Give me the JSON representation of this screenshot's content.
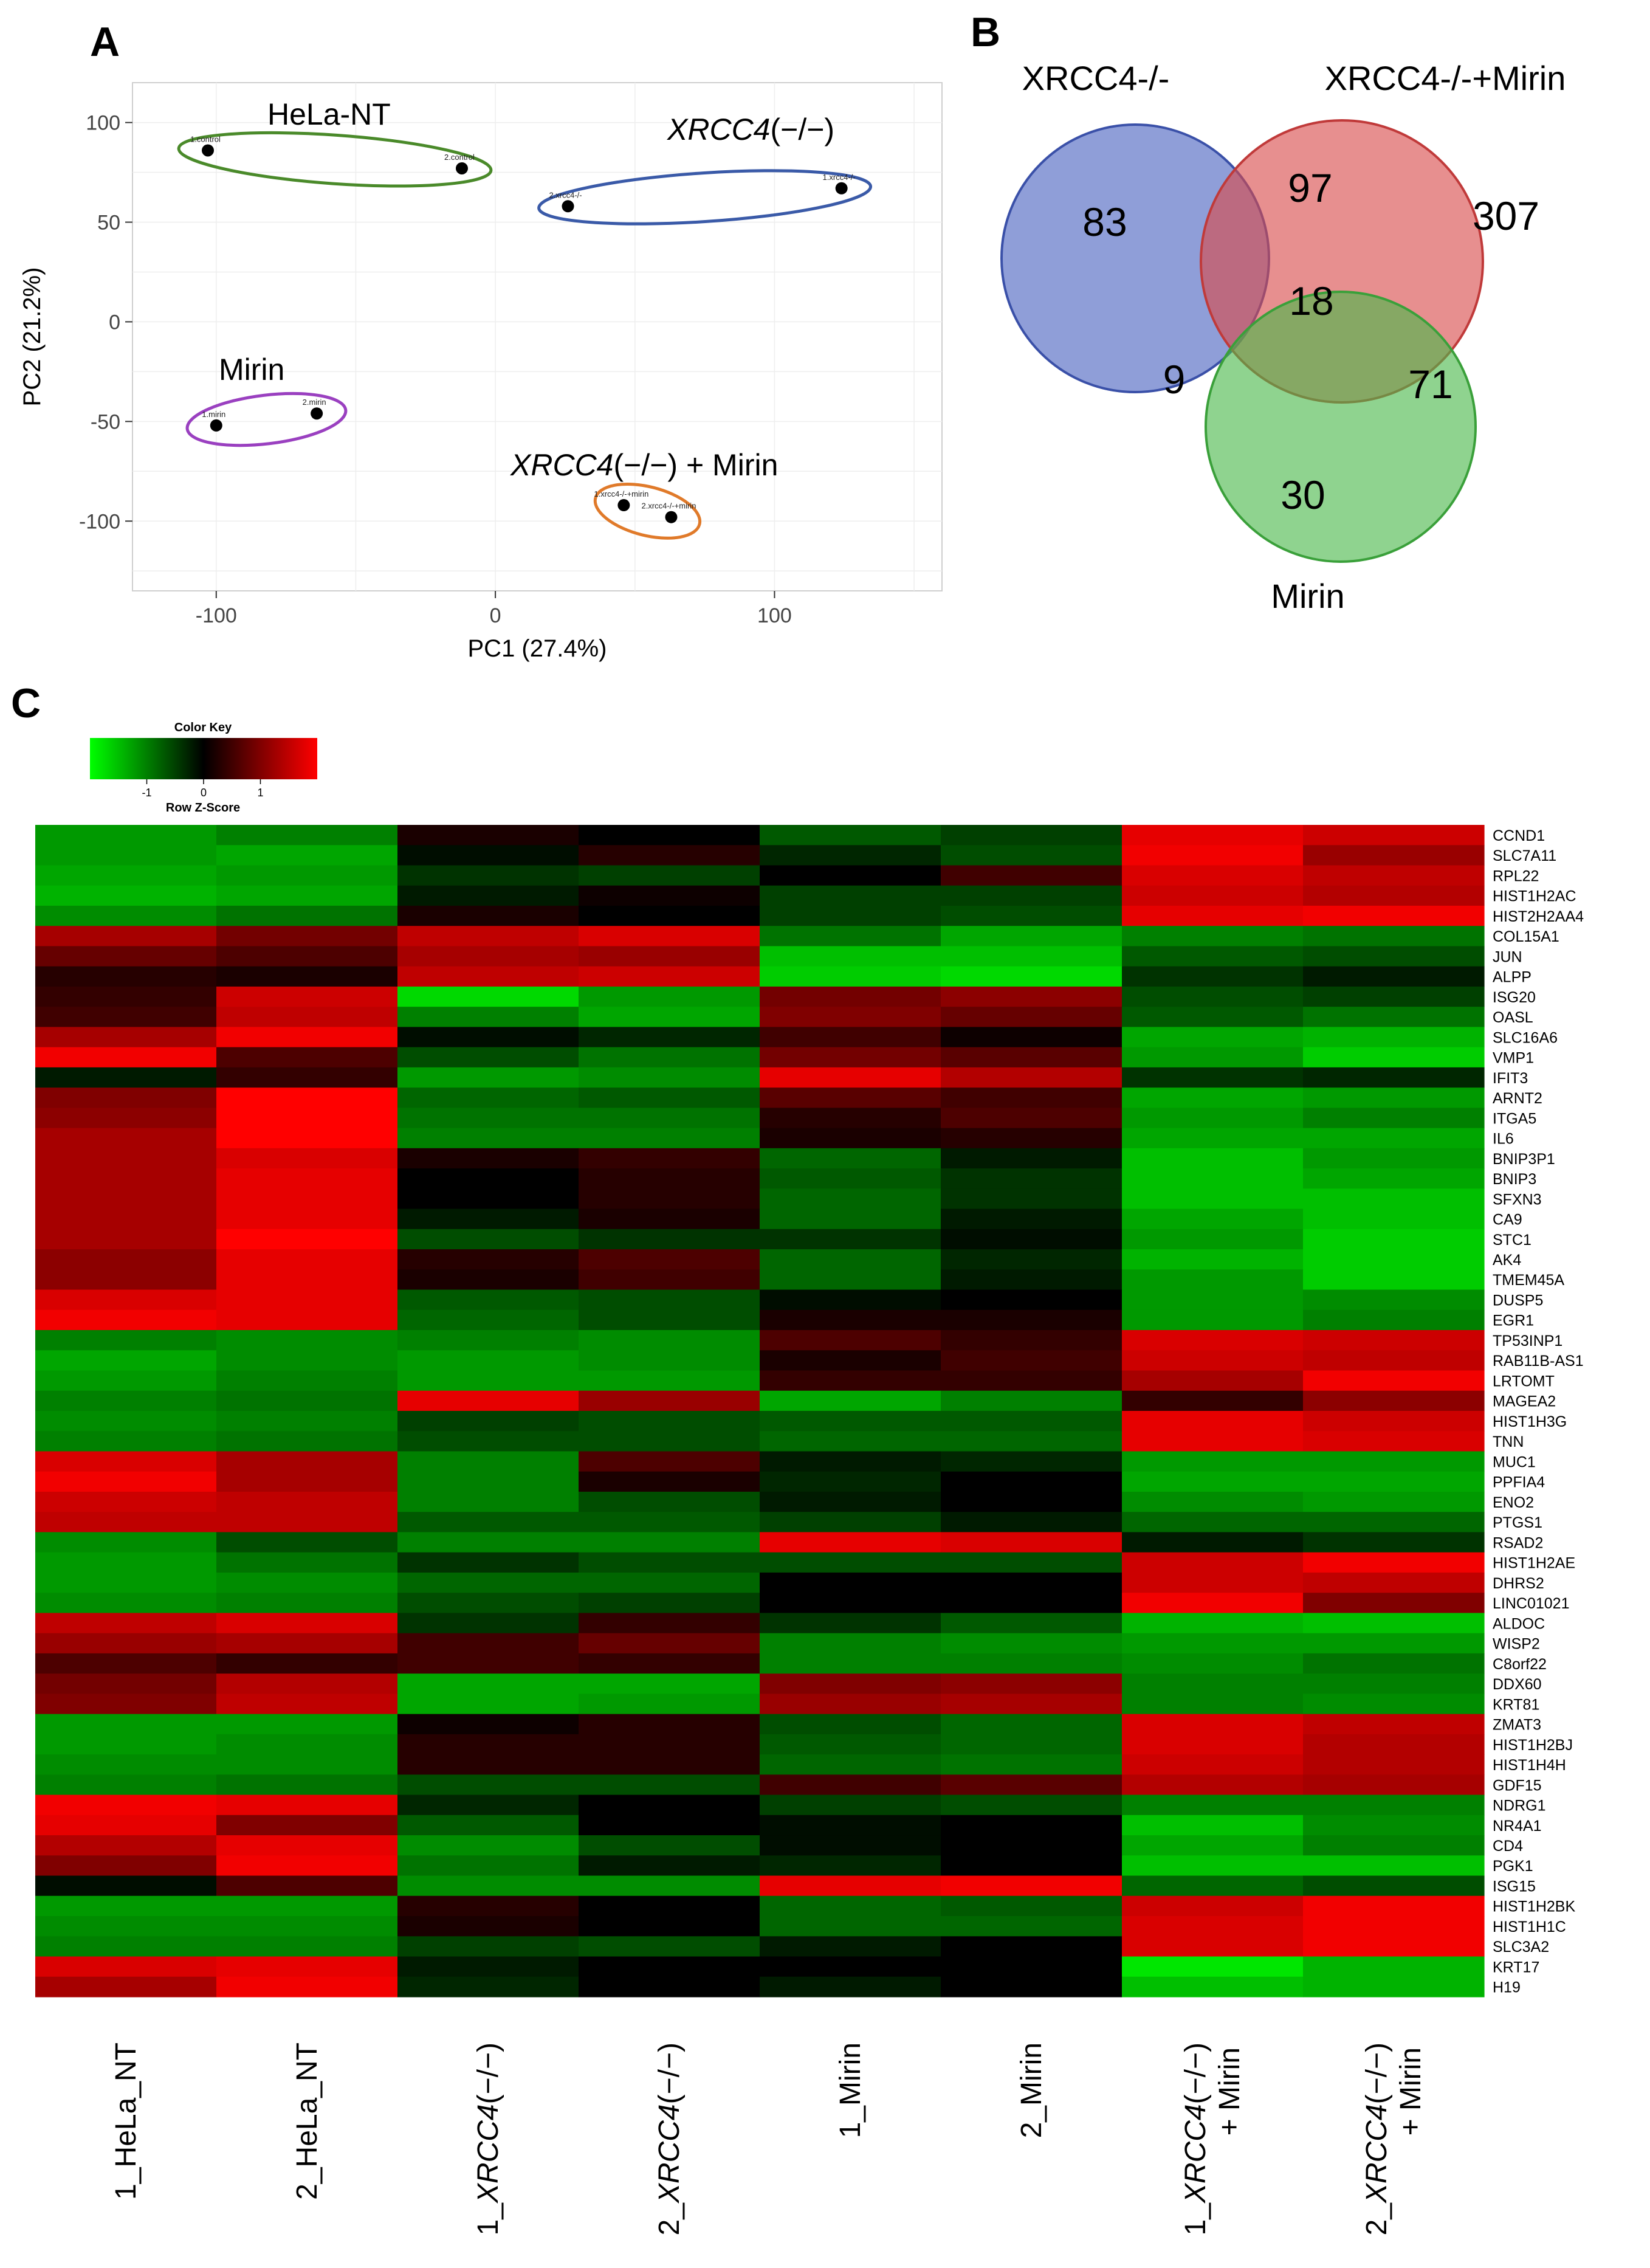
{
  "chart_data": [
    {
      "panel": "A",
      "type": "scatter",
      "xlabel": "PC1 (27.4%)",
      "ylabel": "PC2 (21.2%)",
      "xlim": [
        -130,
        160
      ],
      "ylim": [
        -135,
        120
      ],
      "xticks": [
        -100,
        0,
        100
      ],
      "yticks": [
        -100,
        -50,
        0,
        50,
        100
      ],
      "grid": true,
      "groups": [
        {
          "name": "HeLa-NT",
          "italic": false,
          "color": "#4a8a2a",
          "points": [
            {
              "label": "1.control",
              "x": -103,
              "y": 86
            },
            {
              "label": "2.control",
              "x": -12,
              "y": 77
            }
          ]
        },
        {
          "name": "XRCC4",
          "suffix": "(−/−)",
          "italic": true,
          "color": "#3a5aa8",
          "points": [
            {
              "label": "2.xrcc4-/-",
              "x": 26,
              "y": 58
            },
            {
              "label": "1.xrcc4-/-",
              "x": 124,
              "y": 67
            }
          ]
        },
        {
          "name": "Mirin",
          "italic": false,
          "color": "#9a40c0",
          "points": [
            {
              "label": "1.mirin",
              "x": -100,
              "y": -52
            },
            {
              "label": "2.mirin",
              "x": -64,
              "y": -46
            }
          ]
        },
        {
          "name": "XRCC4",
          "suffix": "(−/−) + Mirin",
          "italic": true,
          "color": "#e07a2a",
          "points": [
            {
              "label": "1.xrcc4-/-+mirin",
              "x": 46,
              "y": -92
            },
            {
              "label": "2.xrcc4-/-+mirin",
              "x": 63,
              "y": -98
            }
          ]
        }
      ]
    },
    {
      "panel": "B",
      "type": "venn",
      "sets": [
        {
          "name": "XRCC4-/-",
          "color": "#4a62c0"
        },
        {
          "name": "XRCC4-/-+Mirin",
          "color": "#d94a4a"
        },
        {
          "name": "Mirin",
          "color": "#4ab84a"
        }
      ],
      "regions": [
        {
          "sets": [
            "XRCC4-/-"
          ],
          "value": "83"
        },
        {
          "sets": [
            "XRCC4-/-+Mirin"
          ],
          "value": "307"
        },
        {
          "sets": [
            "Mirin"
          ],
          "value": "30"
        },
        {
          "sets": [
            "XRCC4-/-",
            "XRCC4-/-+Mirin"
          ],
          "value": "97"
        },
        {
          "sets": [
            "XRCC4-/-",
            "Mirin"
          ],
          "value": "9"
        },
        {
          "sets": [
            "XRCC4-/-+Mirin",
            "Mirin"
          ],
          "value": "71"
        },
        {
          "sets": [
            "XRCC4-/-",
            "XRCC4-/-+Mirin",
            "Mirin"
          ],
          "value": "18"
        }
      ]
    },
    {
      "panel": "C",
      "type": "heatmap",
      "color_key": {
        "title": "Color Key",
        "subtitle": "Row Z-Score",
        "ticks": [
          "-1",
          "0",
          "1"
        ],
        "range": [
          -2,
          2
        ],
        "low_color": "#00ff00",
        "mid_color": "#000000",
        "high_color": "#ff0000"
      },
      "columns": [
        {
          "prefix": "1_",
          "name": "HeLa_NT",
          "italic": false,
          "suffix": "",
          "line2": ""
        },
        {
          "prefix": "2_",
          "name": "HeLa_NT",
          "italic": false,
          "suffix": "",
          "line2": ""
        },
        {
          "prefix": "1_",
          "name": "XRCC4",
          "italic": true,
          "suffix": "(−/−)",
          "line2": ""
        },
        {
          "prefix": "2_",
          "name": "XRCC4",
          "italic": true,
          "suffix": "(−/−)",
          "line2": ""
        },
        {
          "prefix": "1_",
          "name": "Mirin",
          "italic": false,
          "suffix": "",
          "line2": ""
        },
        {
          "prefix": "2_",
          "name": "Mirin",
          "italic": false,
          "suffix": "",
          "line2": ""
        },
        {
          "prefix": "1_",
          "name": "XRCC4",
          "italic": true,
          "suffix": "(−/−)",
          "line2": "+ Mirin"
        },
        {
          "prefix": "2_",
          "name": "XRCC4",
          "italic": true,
          "suffix": "(−/−)",
          "line2": "+ Mirin"
        }
      ],
      "rows": [
        "CCND1",
        "SLC7A11",
        "RPL22",
        "HIST1H2AC",
        "HIST2H2AA4",
        "COL15A1",
        "JUN",
        "ALPP",
        "ISG20",
        "OASL",
        "SLC16A6",
        "VMP1",
        "IFIT3",
        "ARNT2",
        "ITGA5",
        "IL6",
        "BNIP3P1",
        "BNIP3",
        "SFXN3",
        "CA9",
        "STC1",
        "AK4",
        "TMEM45A",
        "DUSP5",
        "EGR1",
        "TP53INP1",
        "RAB11B-AS1",
        "LRTOMT",
        "MAGEA2",
        "HIST1H3G",
        "TNN",
        "MUC1",
        "PPFIA4",
        "ENO2",
        "PTGS1",
        "RSAD2",
        "HIST1H2AE",
        "DHRS2",
        "LINC01021",
        "ALDOC",
        "WISP2",
        "C8orf22",
        "DDX60",
        "KRT81",
        "ZMAT3",
        "HIST1H2BJ",
        "HIST1H4H",
        "GDF15",
        "NDRG1",
        "NR4A1",
        "CD4",
        "PGK1",
        "ISG15",
        "HIST1H2BK",
        "HIST1H1C",
        "SLC3A2",
        "KRT17",
        "H19"
      ],
      "values": [
        [
          -1.2,
          -1.0,
          0.2,
          0.0,
          -0.7,
          -0.5,
          1.8,
          1.6
        ],
        [
          -1.2,
          -1.3,
          -0.1,
          0.3,
          -0.3,
          -0.6,
          1.9,
          1.2
        ],
        [
          -1.3,
          -1.2,
          -0.4,
          -0.5,
          0.0,
          0.5,
          1.7,
          1.5
        ],
        [
          -1.4,
          -1.3,
          -0.2,
          0.1,
          -0.5,
          -0.5,
          1.6,
          1.4
        ],
        [
          -1.1,
          -0.9,
          0.2,
          0.0,
          -0.5,
          -0.6,
          1.8,
          1.9
        ],
        [
          1.3,
          0.9,
          1.5,
          1.7,
          -0.9,
          -1.3,
          -1.0,
          -0.9
        ],
        [
          0.8,
          0.6,
          1.3,
          1.2,
          -1.5,
          -1.5,
          -0.7,
          -0.6
        ],
        [
          0.3,
          0.2,
          1.5,
          1.6,
          -1.6,
          -1.7,
          -0.4,
          -0.2
        ],
        [
          0.4,
          1.6,
          -1.7,
          -1.2,
          0.9,
          1.1,
          -0.6,
          -0.5
        ],
        [
          0.5,
          1.5,
          -1.0,
          -1.3,
          1.0,
          0.8,
          -0.7,
          -0.9
        ],
        [
          1.3,
          1.9,
          -0.1,
          -0.3,
          0.5,
          0.1,
          -1.3,
          -1.4
        ],
        [
          1.9,
          0.6,
          -0.6,
          -0.9,
          0.9,
          0.7,
          -1.2,
          -1.6
        ],
        [
          -0.2,
          0.4,
          -1.2,
          -1.1,
          1.8,
          1.4,
          -0.4,
          -0.3
        ],
        [
          1.0,
          2.0,
          -0.8,
          -0.7,
          0.7,
          0.5,
          -1.3,
          -1.2
        ],
        [
          1.1,
          2.0,
          -0.9,
          -0.9,
          0.3,
          0.6,
          -1.2,
          -1.0
        ],
        [
          1.3,
          2.0,
          -1.0,
          -1.0,
          0.2,
          0.3,
          -1.3,
          -1.3
        ],
        [
          1.3,
          1.7,
          0.2,
          0.4,
          -0.8,
          -0.2,
          -1.5,
          -1.2
        ],
        [
          1.3,
          1.8,
          0.0,
          0.3,
          -0.7,
          -0.4,
          -1.5,
          -1.3
        ],
        [
          1.3,
          1.8,
          0.0,
          0.3,
          -0.8,
          -0.4,
          -1.5,
          -1.5
        ],
        [
          1.3,
          1.8,
          -0.2,
          0.2,
          -0.8,
          -0.2,
          -1.3,
          -1.5
        ],
        [
          1.3,
          2.0,
          -0.6,
          -0.4,
          -0.4,
          -0.1,
          -1.2,
          -1.6
        ],
        [
          1.1,
          1.8,
          0.3,
          0.6,
          -0.8,
          -0.3,
          -1.4,
          -1.6
        ],
        [
          1.1,
          1.8,
          0.2,
          0.5,
          -0.8,
          -0.2,
          -1.2,
          -1.6
        ],
        [
          1.7,
          1.8,
          -0.7,
          -0.6,
          -0.1,
          0.0,
          -1.2,
          -1.1
        ],
        [
          1.9,
          1.8,
          -0.8,
          -0.6,
          0.2,
          0.2,
          -1.2,
          -1.0
        ],
        [
          -1.0,
          -1.1,
          -1.0,
          -1.1,
          0.6,
          0.4,
          1.7,
          1.6
        ],
        [
          -1.3,
          -1.1,
          -1.2,
          -1.1,
          0.2,
          0.5,
          1.6,
          1.5
        ],
        [
          -1.2,
          -1.0,
          -1.2,
          -1.2,
          0.4,
          0.4,
          1.3,
          1.9
        ],
        [
          -1.0,
          -0.9,
          1.8,
          1.2,
          -1.3,
          -1.0,
          0.4,
          1.1
        ],
        [
          -1.1,
          -1.0,
          -0.5,
          -0.6,
          -0.7,
          -0.7,
          1.8,
          1.6
        ],
        [
          -1.0,
          -0.9,
          -0.6,
          -0.6,
          -0.8,
          -0.8,
          1.8,
          1.7
        ],
        [
          1.7,
          1.3,
          -1.0,
          0.6,
          -0.2,
          -0.3,
          -1.2,
          -1.2
        ],
        [
          1.9,
          1.3,
          -1.0,
          0.2,
          -0.3,
          0.0,
          -1.3,
          -1.3
        ],
        [
          1.6,
          1.5,
          -1.0,
          -0.6,
          -0.2,
          0.0,
          -1.1,
          -1.2
        ],
        [
          1.5,
          1.5,
          -0.7,
          -0.7,
          -0.5,
          -0.2,
          -0.8,
          -0.8
        ],
        [
          -1.1,
          -0.6,
          -1.0,
          -1.0,
          1.8,
          1.7,
          -0.2,
          -0.4
        ],
        [
          -1.2,
          -0.9,
          -0.4,
          -0.6,
          -0.6,
          -0.6,
          1.6,
          1.9
        ],
        [
          -1.2,
          -1.1,
          -0.8,
          -0.8,
          0.0,
          0.0,
          1.6,
          1.5
        ],
        [
          -1.1,
          -1.0,
          -0.6,
          -0.5,
          0.0,
          0.0,
          1.9,
          1.0
        ],
        [
          1.5,
          1.7,
          -0.4,
          0.4,
          -0.4,
          -0.7,
          -1.4,
          -1.5
        ],
        [
          1.2,
          1.3,
          0.5,
          0.8,
          -1.0,
          -1.1,
          -1.2,
          -1.2
        ],
        [
          0.6,
          0.4,
          0.5,
          0.4,
          -1.0,
          -1.0,
          -1.1,
          -0.9
        ],
        [
          0.9,
          1.4,
          -1.3,
          -1.3,
          1.0,
          1.1,
          -1.0,
          -1.0
        ],
        [
          1.0,
          1.5,
          -1.3,
          -1.2,
          1.2,
          1.3,
          -1.0,
          -1.1
        ],
        [
          -1.2,
          -1.2,
          0.1,
          0.3,
          -0.6,
          -0.8,
          1.7,
          1.5
        ],
        [
          -1.2,
          -1.1,
          0.3,
          0.3,
          -0.7,
          -0.8,
          1.7,
          1.4
        ],
        [
          -1.1,
          -1.1,
          0.3,
          0.3,
          -0.8,
          -0.9,
          1.6,
          1.4
        ],
        [
          -1.0,
          -0.9,
          -0.6,
          -0.6,
          0.5,
          0.7,
          1.4,
          1.3
        ],
        [
          1.9,
          1.8,
          -0.3,
          0.0,
          -0.5,
          -0.6,
          -1.0,
          -1.0
        ],
        [
          1.8,
          1.0,
          -0.7,
          0.0,
          -0.1,
          0.0,
          -1.5,
          -1.1
        ],
        [
          1.4,
          1.8,
          -1.1,
          -0.6,
          -0.1,
          0.0,
          -1.3,
          -1.0
        ],
        [
          1.0,
          1.9,
          -0.9,
          -0.2,
          -0.3,
          0.0,
          -1.5,
          -1.5
        ],
        [
          -0.1,
          0.6,
          -1.1,
          -1.1,
          1.8,
          1.9,
          -0.8,
          -0.6
        ],
        [
          -1.2,
          -1.2,
          0.3,
          0.0,
          -0.8,
          -0.7,
          1.6,
          1.9
        ],
        [
          -1.1,
          -1.1,
          0.2,
          0.0,
          -0.8,
          -0.8,
          1.7,
          1.9
        ],
        [
          -1.0,
          -1.0,
          -0.5,
          -0.6,
          -0.2,
          0.0,
          1.7,
          1.9
        ],
        [
          1.7,
          1.8,
          -0.2,
          0.0,
          0.0,
          0.0,
          -1.8,
          -1.4
        ],
        [
          1.3,
          1.9,
          -0.3,
          0.0,
          -0.2,
          0.0,
          -1.5,
          -1.4
        ]
      ]
    }
  ]
}
